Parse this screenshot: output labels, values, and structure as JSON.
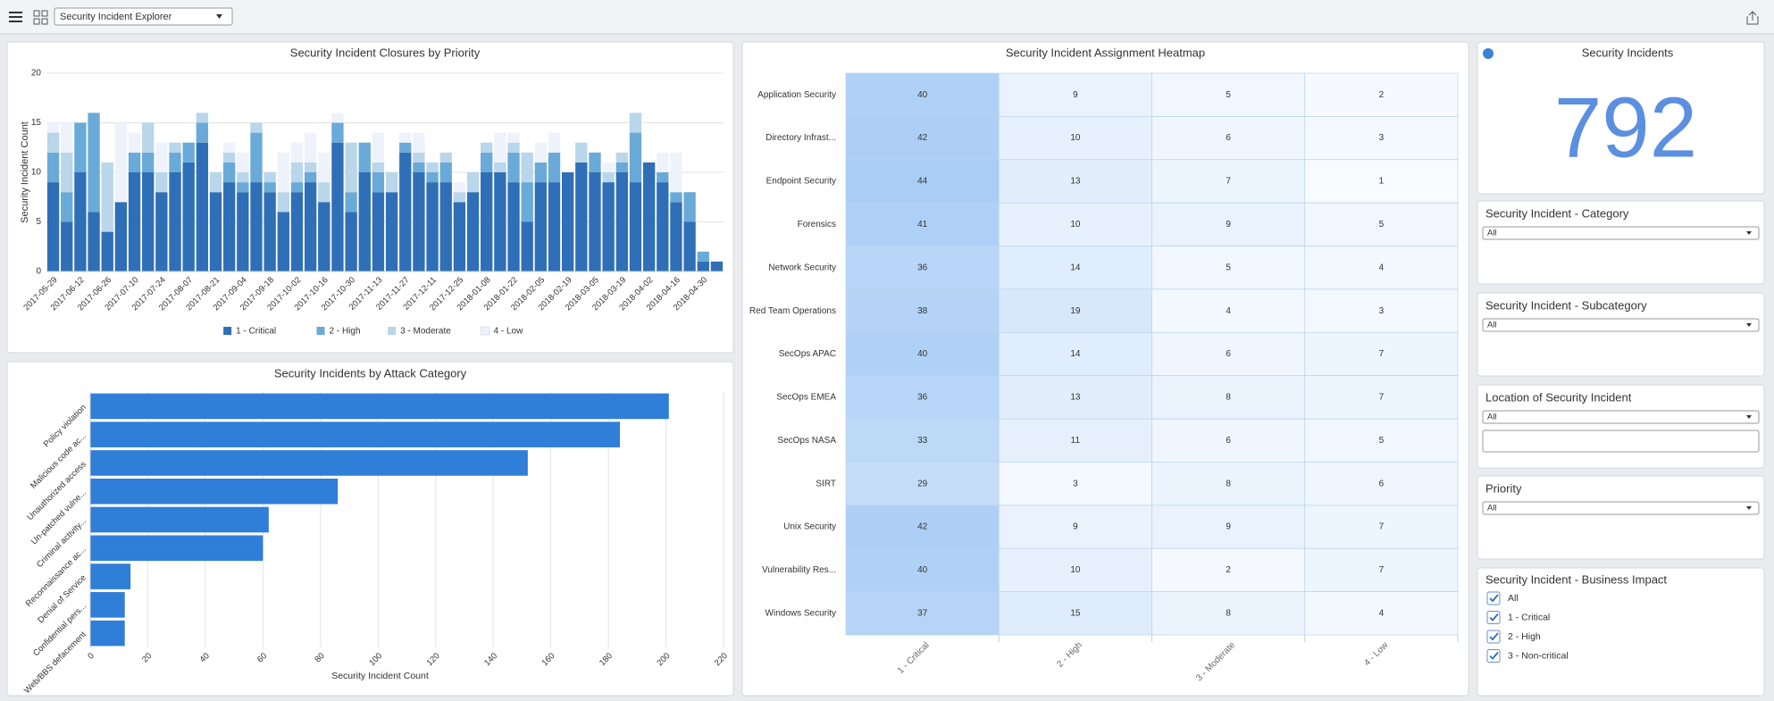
{
  "toolbar": {
    "dashboard": "Security Incident Explorer"
  },
  "chart_data": [
    {
      "type": "stacked-bar",
      "title": "Security Incident Closures by Priority",
      "ylabel": "Security Incident Count",
      "categories": [
        "2017-05-29",
        null,
        "2017-06-12",
        null,
        "2017-06-26",
        null,
        "2017-07-10",
        null,
        "2017-07-24",
        null,
        "2017-08-07",
        null,
        "2017-08-21",
        null,
        "2017-09-04",
        null,
        "2017-09-18",
        null,
        "2017-10-02",
        null,
        "2017-10-16",
        null,
        "2017-10-30",
        null,
        "2017-11-13",
        null,
        "2017-11-27",
        null,
        "2017-12-11",
        null,
        "2017-12-25",
        null,
        "2018-01-08",
        null,
        "2018-01-22",
        null,
        "2018-02-05",
        null,
        "2018-02-19",
        null,
        "2018-03-05",
        null,
        "2018-03-19",
        null,
        "2018-04-02",
        null,
        "2018-04-16",
        null,
        "2018-04-30",
        null
      ],
      "series": [
        {
          "name": "1 - Critical",
          "color": "#2f6fb7",
          "values": [
            9,
            5,
            10,
            6,
            4,
            7,
            10,
            10,
            8,
            10,
            11,
            13,
            8,
            9,
            8,
            9,
            8,
            6,
            8,
            9,
            7,
            13,
            6,
            10,
            8,
            8,
            12,
            10,
            9,
            9,
            7,
            8,
            10,
            10,
            9,
            5,
            9,
            9,
            10,
            11,
            10,
            9,
            10,
            9,
            11,
            9,
            7,
            5,
            1,
            1
          ]
        },
        {
          "name": "2 - High",
          "color": "#6aaad8",
          "values": [
            3,
            3,
            5,
            10,
            0,
            0,
            2,
            2,
            0,
            2,
            2,
            2,
            0,
            2,
            1,
            5,
            1,
            0,
            1,
            1,
            0,
            2,
            2,
            3,
            2,
            0,
            1,
            1,
            1,
            2,
            0,
            0,
            2,
            0,
            3,
            4,
            2,
            3,
            0,
            0,
            2,
            0,
            1,
            5,
            0,
            1,
            1,
            3,
            1,
            0
          ]
        },
        {
          "name": "3 - Moderate",
          "color": "#b9d6ea",
          "values": [
            2,
            4,
            0,
            0,
            7,
            0,
            0,
            3,
            2,
            1,
            0,
            1,
            2,
            1,
            1,
            1,
            1,
            2,
            2,
            1,
            2,
            0,
            5,
            0,
            1,
            2,
            0,
            1,
            1,
            1,
            1,
            2,
            1,
            1,
            1,
            3,
            0,
            0,
            0,
            2,
            0,
            1,
            1,
            2,
            0,
            0,
            0,
            0,
            0,
            0
          ]
        },
        {
          "name": "4 - Low",
          "color": "#eef2fb",
          "values": [
            1,
            3,
            0,
            0,
            0,
            8,
            2,
            0,
            3,
            0,
            0,
            0,
            0,
            1,
            2,
            0,
            0,
            4,
            2,
            3,
            3,
            1,
            0,
            0,
            3,
            0,
            1,
            2,
            0,
            0,
            1,
            0,
            0,
            3,
            1,
            0,
            2,
            2,
            0,
            0,
            0,
            1,
            0,
            0,
            0,
            2,
            4,
            0,
            0,
            0
          ]
        }
      ],
      "ylim": [
        0,
        20
      ],
      "yticks": [
        0,
        5,
        10,
        15,
        20
      ],
      "grid": true,
      "legend": "bottom"
    },
    {
      "type": "barh",
      "title": "Security Incidents by Attack Category",
      "xlabel": "Security Incident Count",
      "categories": [
        "Policy violation",
        "Malicious code ac...",
        "Unauthorized access",
        "Un-patched vulne...",
        "Criminal activity...",
        "Reconnaissance ac...",
        "Denial of Service",
        "Confidential pers...",
        "Web/BBS defacement"
      ],
      "values": [
        201,
        184,
        152,
        86,
        62,
        60,
        14,
        12,
        12
      ],
      "color": "#2f7ed8",
      "xlim": [
        0,
        220
      ],
      "xticks": [
        0,
        20,
        40,
        60,
        80,
        100,
        120,
        140,
        160,
        180,
        200,
        220
      ],
      "grid": true
    },
    {
      "type": "heatmap",
      "title": "Security Incident Assignment Heatmap",
      "rows": [
        "Application Security",
        "Directory Infrast...",
        "Endpoint Security",
        "Forensics",
        "Network Security",
        "Red Team Operations",
        "SecOps APAC",
        "SecOps EMEA",
        "SecOps NASA",
        "SIRT",
        "Unix Security",
        "Vulnerability Res...",
        "Windows Security"
      ],
      "columns": [
        "1 - Critical",
        "2 - High",
        "3 - Moderate",
        "4 - Low"
      ],
      "values": [
        [
          40,
          9,
          5,
          2
        ],
        [
          42,
          10,
          6,
          3
        ],
        [
          44,
          13,
          7,
          1
        ],
        [
          41,
          10,
          9,
          5
        ],
        [
          36,
          14,
          5,
          4
        ],
        [
          38,
          19,
          4,
          3
        ],
        [
          40,
          14,
          6,
          7
        ],
        [
          36,
          13,
          8,
          7
        ],
        [
          33,
          11,
          6,
          5
        ],
        [
          29,
          3,
          8,
          6
        ],
        [
          42,
          9,
          9,
          7
        ],
        [
          40,
          10,
          2,
          7
        ],
        [
          37,
          15,
          8,
          4
        ]
      ],
      "color_range": [
        "#f8fbff",
        "#a9cdf5"
      ]
    }
  ],
  "score": {
    "title": "Security Incidents",
    "value": 792,
    "color": "#5b8fe0"
  },
  "filters": [
    {
      "title": "Security Incident - Category",
      "selected": "All"
    },
    {
      "title": "Security Incident - Subcategory",
      "selected": "All"
    },
    {
      "title": "Location of Security Incident",
      "selected": "All",
      "search": true
    },
    {
      "title": "Priority",
      "selected": "All"
    }
  ],
  "business_impact": {
    "title": "Security Incident - Business Impact",
    "options": [
      "All",
      "1 - Critical",
      "2 - High",
      "3 - Non-critical"
    ]
  }
}
